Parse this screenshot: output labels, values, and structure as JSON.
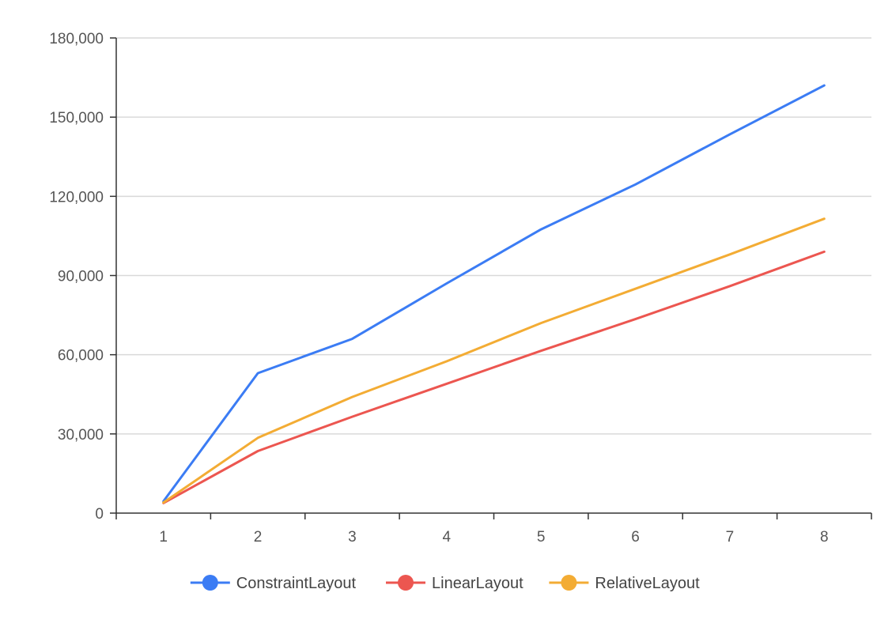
{
  "chart_data": {
    "type": "line",
    "title": "",
    "xlabel": "",
    "ylabel": "",
    "categories": [
      "1",
      "2",
      "3",
      "4",
      "5",
      "6",
      "7",
      "8"
    ],
    "x": [
      1,
      2,
      3,
      4,
      5,
      6,
      7,
      8
    ],
    "ylim": [
      0,
      180000
    ],
    "yticks": [
      0,
      30000,
      60000,
      90000,
      120000,
      150000,
      180000
    ],
    "ytick_labels": [
      "0",
      "30,000",
      "60,000",
      "90,000",
      "120,000",
      "150,000",
      "180,000"
    ],
    "grid": true,
    "legend_position": "bottom",
    "series": [
      {
        "name": "ConstraintLayout",
        "color": "#3b7cf4",
        "values": [
          4500,
          53000,
          66000,
          87000,
          107500,
          124500,
          143500,
          162000
        ]
      },
      {
        "name": "LinearLayout",
        "color": "#ec5650",
        "values": [
          3800,
          23500,
          36500,
          49000,
          61500,
          73500,
          86000,
          99000
        ]
      },
      {
        "name": "RelativeLayout",
        "color": "#f3ac34",
        "values": [
          4000,
          28500,
          44000,
          57500,
          72000,
          85000,
          98000,
          111500
        ]
      }
    ]
  }
}
